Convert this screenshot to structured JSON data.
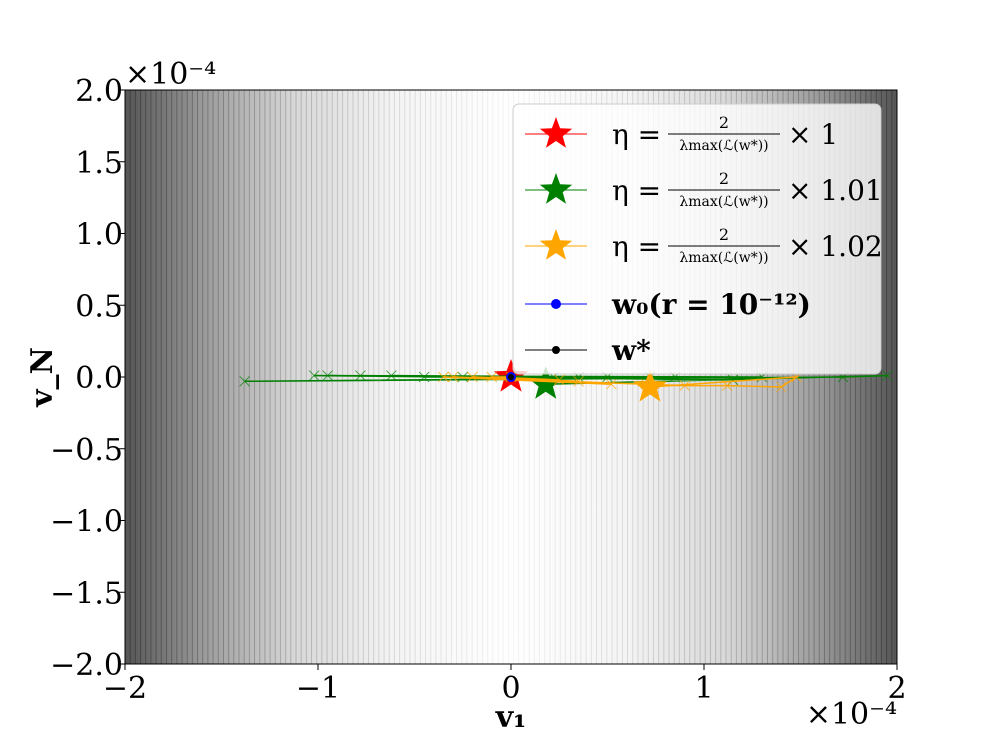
{
  "chart_data": {
    "type": "scatter",
    "title": "",
    "xlabel": "v₁",
    "ylabel": "v_N",
    "x_multiplier": "×10⁻⁴",
    "y_multiplier": "×10⁻⁴",
    "xlim": [
      -2.0,
      2.0
    ],
    "ylim": [
      -2.0,
      2.0
    ],
    "xticks": [
      -2,
      -1,
      0,
      1,
      2
    ],
    "xtick_labels": [
      "−2",
      "−1",
      "0",
      "1",
      "2"
    ],
    "yticks": [
      -2.0,
      -1.5,
      -1.0,
      -0.5,
      0.0,
      0.5,
      1.0,
      1.5,
      2.0
    ],
    "ytick_labels": [
      "−2.0",
      "−1.5",
      "−1.0",
      "−0.5",
      "0.0",
      "0.5",
      "1.0",
      "1.5",
      "2.0"
    ],
    "background": "grayscale vertical contour bands, darker with increasing |v₁|",
    "grid": false,
    "legend_position": "top-right",
    "series": [
      {
        "name": "η = 2/λmax(ℒ(w*)) × 1",
        "color": "#ff0000",
        "marker_end": "star",
        "x": [
          0.0,
          0.0
        ],
        "y": [
          0.0,
          0.0
        ],
        "end": [
          0.0,
          0.0
        ]
      },
      {
        "name": "η = 2/λmax(ℒ(w*)) × 1.01",
        "color": "#008000",
        "marker_end": "star",
        "x": [
          0.0,
          0.22,
          -0.25,
          0.35,
          -0.45,
          0.5,
          -0.62,
          0.72,
          -0.78,
          0.85,
          -0.95,
          1.15,
          -1.02,
          1.3,
          -1.38,
          1.72,
          1.95,
          0.18
        ],
        "y": [
          0.0,
          0.0,
          0.0,
          0.0,
          0.0,
          0.0,
          0.01,
          0.0,
          0.01,
          0.0,
          0.01,
          -0.02,
          0.01,
          0.0,
          -0.03,
          0.0,
          0.01,
          -0.05
        ],
        "end": [
          0.18,
          -0.05
        ]
      },
      {
        "name": "η = 2/λmax(ℒ(w*)) × 1.02",
        "color": "#ffa500",
        "marker_end": "star",
        "x": [
          0.0,
          -0.1,
          0.25,
          -0.2,
          0.35,
          -0.3,
          0.52,
          -0.35,
          0.7,
          0.9,
          1.12,
          1.4,
          1.48,
          0.72
        ],
        "y": [
          0.0,
          0.0,
          -0.02,
          0.0,
          -0.03,
          0.0,
          -0.05,
          0.0,
          -0.05,
          -0.06,
          -0.06,
          -0.07,
          0.0,
          -0.07
        ],
        "end": [
          0.72,
          -0.07
        ]
      }
    ],
    "points": [
      {
        "name": "w₀(r = 10⁻¹²)",
        "color": "#0000ff",
        "x": 0.0,
        "y": 0.0
      },
      {
        "name": "w*",
        "color": "#000000",
        "x": 0.0,
        "y": 0.0
      }
    ]
  },
  "legend": {
    "entries": [
      {
        "prefix": "η =",
        "num": "2",
        "den": "λmax(ℒ(w*))",
        "suffix": "× 1",
        "color": "#ff0000",
        "marker": "star"
      },
      {
        "prefix": "η =",
        "num": "2",
        "den": "λmax(ℒ(w*))",
        "suffix": "× 1.01",
        "color": "#008000",
        "marker": "star"
      },
      {
        "prefix": "η =",
        "num": "2",
        "den": "λmax(ℒ(w*))",
        "suffix": "× 1.02",
        "color": "#ffa500",
        "marker": "star"
      },
      {
        "text": "w₀(r = 10⁻¹²)",
        "color": "#0000ff",
        "marker": "dot"
      },
      {
        "text": "w*",
        "color": "#000000",
        "marker": "dot"
      }
    ]
  }
}
